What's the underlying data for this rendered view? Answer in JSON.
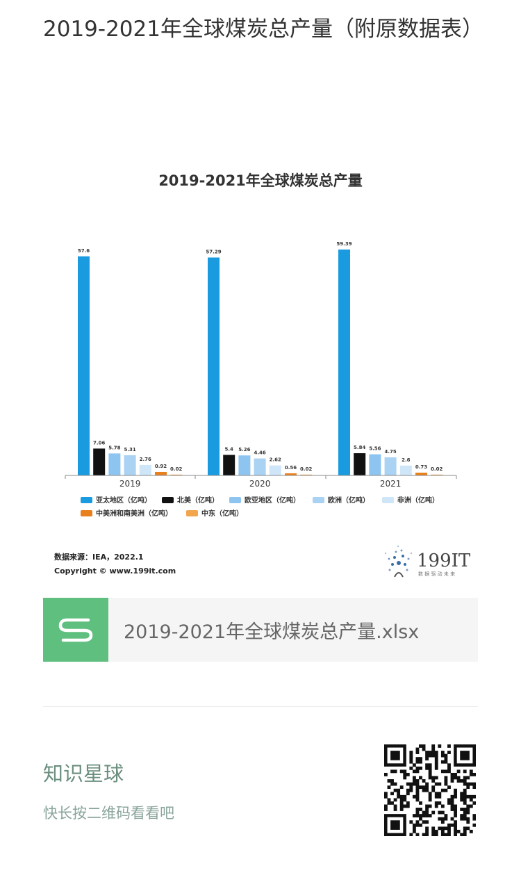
{
  "article": {
    "title": "2019-2021年全球煤炭总产量（附原数据表）"
  },
  "chart_data": {
    "type": "bar",
    "title": "2019-2021年全球煤炭总产量",
    "categories": [
      "2019",
      "2020",
      "2021"
    ],
    "series": [
      {
        "name": "亚太地区（亿吨）",
        "values": [
          57.6,
          57.29,
          59.39
        ],
        "color": "#1a9be0"
      },
      {
        "name": "北美（亿吨）",
        "values": [
          7.06,
          5.4,
          5.84
        ],
        "color": "#111111"
      },
      {
        "name": "欧亚地区（亿吨）",
        "values": [
          5.78,
          5.26,
          5.56
        ],
        "color": "#8ec4f0"
      },
      {
        "name": "欧洲（亿吨）",
        "values": [
          5.31,
          4.46,
          4.75
        ],
        "color": "#a9d2f3"
      },
      {
        "name": "非洲（亿吨）",
        "values": [
          2.76,
          2.62,
          2.6
        ],
        "color": "#cfe6f8"
      },
      {
        "name": "中美洲和南美洲（亿吨）",
        "values": [
          0.92,
          0.56,
          0.73
        ],
        "color": "#e8801e"
      },
      {
        "name": "中东（亿吨）",
        "values": [
          0.02,
          0.02,
          0.02
        ],
        "color": "#f3a54d"
      }
    ],
    "ylim": [
      0,
      60
    ],
    "grid": false,
    "legend": "bottom",
    "source": "数据来源：IEA，2022.1",
    "copyright": "Copyright © www.199it.com",
    "logo_text": "199IT",
    "logo_sub": "数 据 驱 动 未 来"
  },
  "file": {
    "name": "2019-2021年全球煤炭总产量.xlsx",
    "icon": "spreadsheet-icon",
    "color": "#5fbf7f"
  },
  "zsxq": {
    "title": "知识星球",
    "subtitle": "快长按二维码看看吧"
  }
}
